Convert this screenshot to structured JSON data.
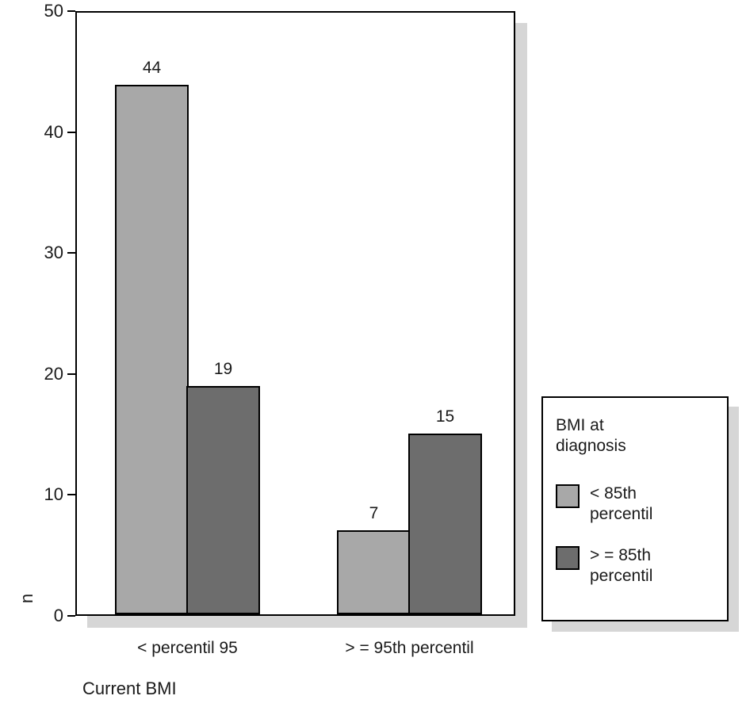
{
  "chart_data": {
    "type": "bar",
    "title": "",
    "xlabel": "Current BMI",
    "ylabel": "n",
    "ylim": [
      0,
      50
    ],
    "yticks": [
      0,
      10,
      20,
      30,
      40,
      50
    ],
    "grid": false,
    "categories": [
      "< percentil 95",
      "> = 95th percentil"
    ],
    "series": [
      {
        "name": "< 85th percentil",
        "color": "#a8a8a8",
        "values": [
          44,
          7
        ]
      },
      {
        "name": "> = 85th percentil",
        "color": "#6d6d6d",
        "values": [
          19,
          15
        ]
      }
    ],
    "bar_value_labels": [
      [
        44,
        7
      ],
      [
        19,
        15
      ]
    ],
    "legend": {
      "position": "right",
      "title": "BMI at diagnosis",
      "entries": [
        {
          "label": "< 85th percentil",
          "color": "#a8a8a8"
        },
        {
          "label": "> = 85th percentil",
          "color": "#6d6d6d"
        }
      ]
    },
    "colors": {
      "axis": "#000000",
      "shadow": "#d6d6d6",
      "background": "#ffffff"
    }
  }
}
